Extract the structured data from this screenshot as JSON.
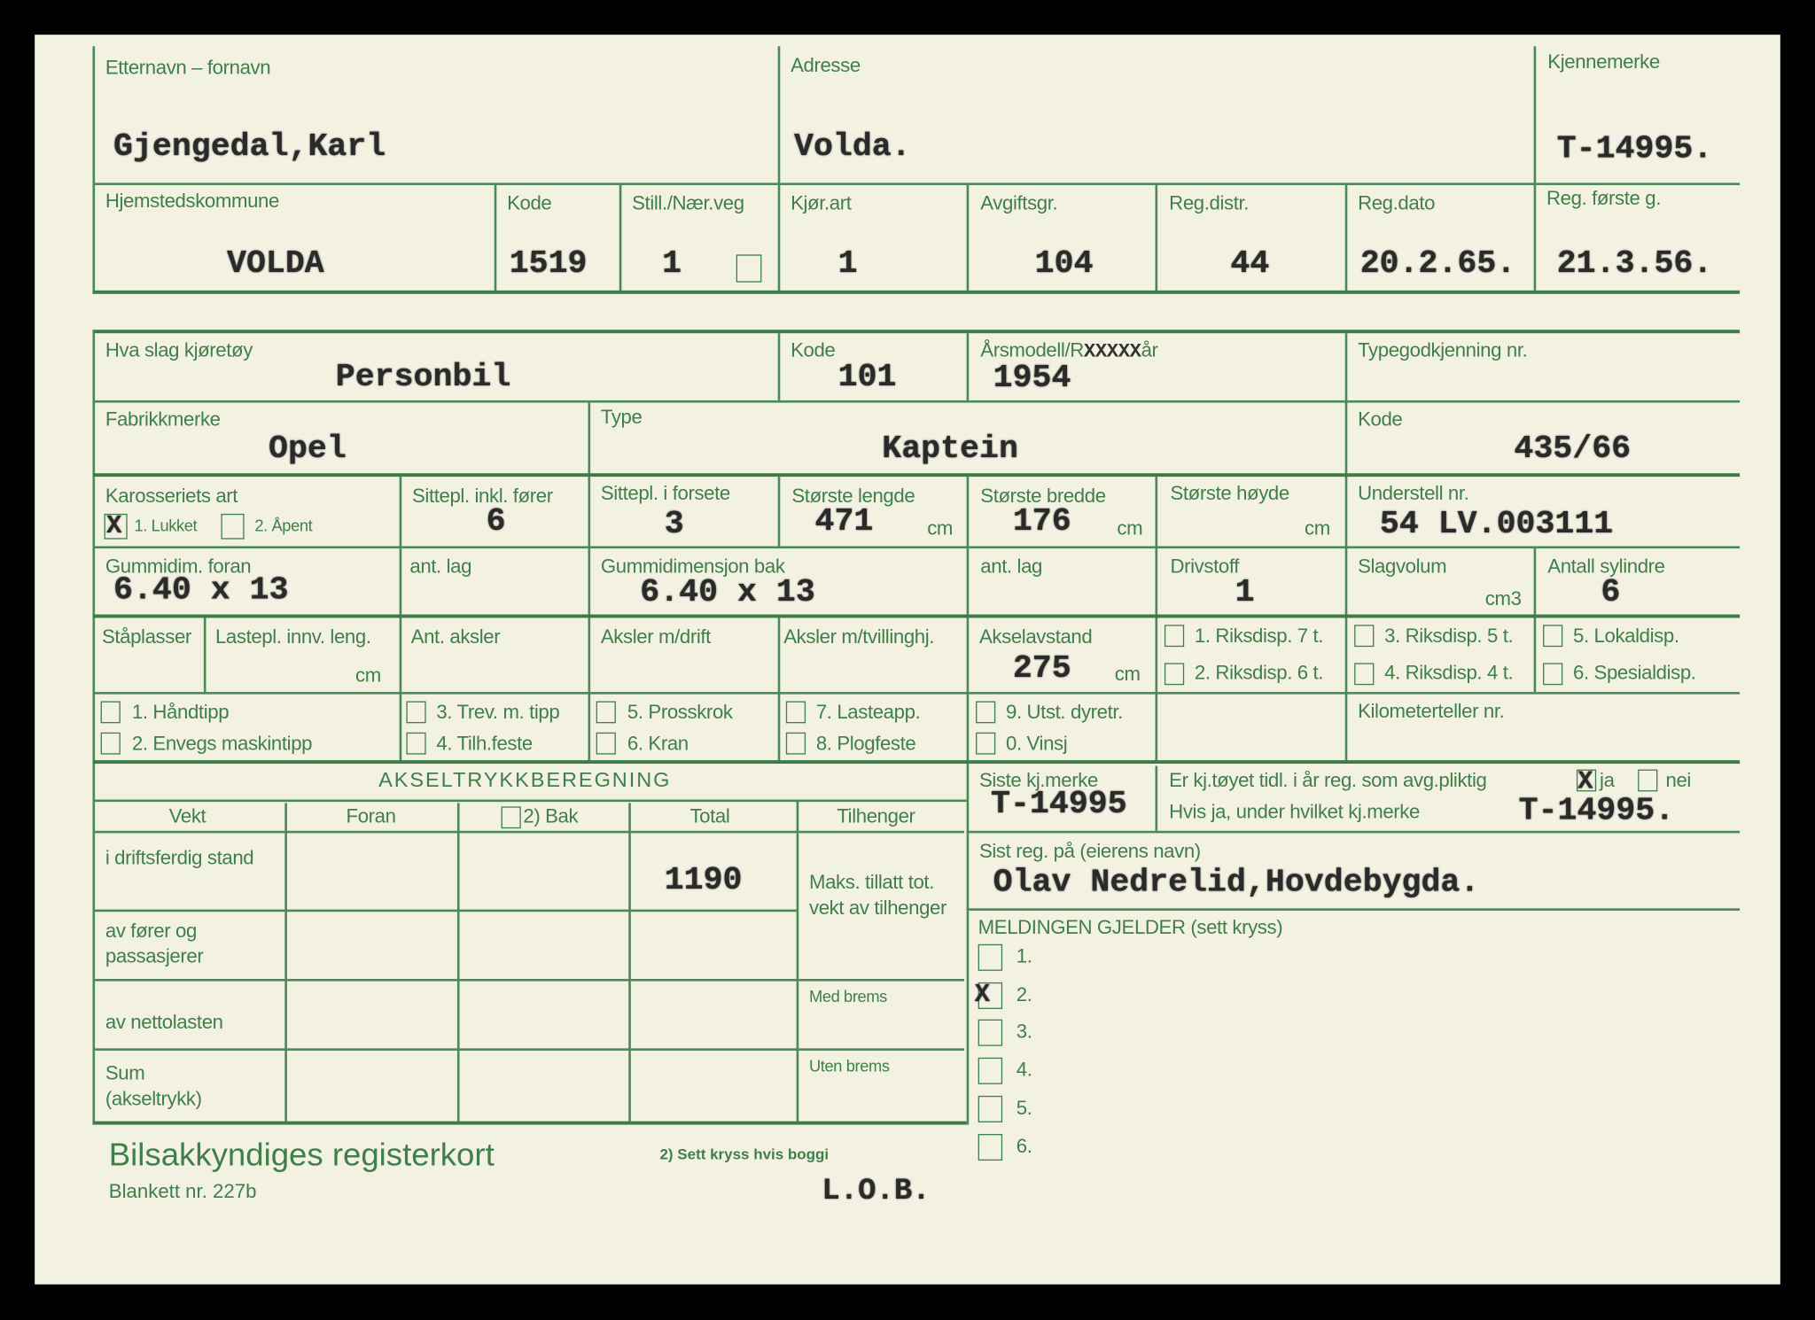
{
  "owner": {
    "name_label": "Etternavn – fornavn",
    "name": "Gjengedal,Karl",
    "address_label": "Adresse",
    "address": "Volda.",
    "plate_label": "Kjennemerke",
    "plate": "T-14995."
  },
  "registration": {
    "municipality_label": "Hjemstedskommune",
    "municipality": "VOLDA",
    "code_label": "Kode",
    "code": "1519",
    "still_label": "Still./Nær.veg",
    "still": "1",
    "kjorart_label": "Kjør.art",
    "kjorart": "1",
    "avgift_label": "Avgiftsgr.",
    "avgift": "104",
    "regdistr_label": "Reg.distr.",
    "regdistr": "44",
    "regdato_label": "Reg.dato",
    "regdato": "20.2.65.",
    "regforste_label": "Reg. første g.",
    "regforste": "21.3.56."
  },
  "vehicle": {
    "kind_label": "Hva slag kjøretøy",
    "kind": "Personbil",
    "kind_code_label": "Kode",
    "kind_code": "101",
    "year_label_prefix": "Årsmodell/R",
    "year_label_overstrike": "XXXXX",
    "year_label_suffix": "år",
    "year": "1954",
    "typegodkjenning_label": "Typegodkjenning nr.",
    "make_label": "Fabrikkmerke",
    "make": "Opel",
    "type_label": "Type",
    "type": "Kaptein",
    "type_code_label": "Kode",
    "type_code": "435/66",
    "body_label": "Karosseriets art",
    "body_opt1": "1. Lukket",
    "body_opt1_checked": true,
    "body_opt2": "2. Åpent",
    "seats_label": "Sittepl. inkl. fører",
    "seats": "6",
    "front_seats_label": "Sittepl. i forsete",
    "front_seats": "3",
    "length_label": "Største lengde",
    "length": "471",
    "width_label": "Største bredde",
    "width": "176",
    "height_label": "Største høyde",
    "unit_cm": "cm",
    "chassis_label": "Understell nr.",
    "chassis": "54 LV.003111",
    "tire_front_label": "Gummidim. foran",
    "tire_front": "6.40 x 13",
    "layers_label": "ant. lag",
    "tire_rear_label": "Gummidimensjon bak",
    "tire_rear": "6.40 x 13",
    "fuel_label": "Drivstoff",
    "fuel": "1",
    "displacement_label": "Slagvolum",
    "unit_cm3": "cm3",
    "cylinders_label": "Antall sylindre",
    "cylinders": "6",
    "standing_label": "Ståplasser",
    "cargo_length_label": "Lastepl. innv. leng.",
    "axles_label": "Ant. aksler",
    "drive_axles_label": "Aksler m/drift",
    "twin_axles_label": "Aksler m/tvillinghj.",
    "wheelbase_label": "Akselavstand",
    "wheelbase": "275",
    "disp": [
      "1. Riksdisp. 7 t.",
      "2. Riksdisp. 6 t.",
      "3. Riksdisp. 5 t.",
      "4. Riksdisp. 4 t.",
      "5. Lokaldisp.",
      "6. Spesialdisp."
    ],
    "equipment": [
      "1. Håndtipp",
      "2. Envegs maskintipp",
      "3. Trev. m. tipp",
      "4. Tilh.feste",
      "5. Prosskrok",
      "6. Kran",
      "7. Lasteapp.",
      "8. Plogfeste",
      "9. Utst. dyretr.",
      "0. Vinsj"
    ],
    "odometer_label": "Kilometerteller nr."
  },
  "axle_table": {
    "title": "AKSELTRYKKBEREGNING",
    "headers": [
      "Vekt",
      "Foran",
      "2) Bak",
      "Total",
      "Tilhenger"
    ],
    "rows": [
      "i driftsferdig stand",
      "av fører og passasjerer",
      "av nettolasten",
      "Sum (akseltrykk)"
    ],
    "total_driftsferdig": "1190",
    "trailer_max": "Maks. tillatt tot. vekt av tilhenger",
    "with_brakes": "Med brems",
    "without_brakes": "Uten brems"
  },
  "history": {
    "last_plate_label": "Siste kj.merke",
    "last_plate": "T-14995",
    "prev_reg_question": "Er kj.tøyet tidl. i år reg. som avg.pliktig",
    "yes_label": "ja",
    "yes_checked": true,
    "no_label": "nei",
    "which_plate_label": "Hvis ja, under hvilket kj.merke",
    "which_plate": "T-14995.",
    "last_owner_label": "Sist reg. på (eierens navn)",
    "last_owner": "Olav Nedrelid,Hovdebygda."
  },
  "message": {
    "label": "MELDINGEN GJELDER (sett kryss)",
    "options": [
      "1.",
      "2.",
      "3.",
      "4.",
      "5.",
      "6."
    ],
    "checked_index": 1
  },
  "footer": {
    "title": "Bilsakkyndiges registerkort",
    "form_number": "Blankett nr. 227b",
    "note": "2) Sett kryss hvis boggi",
    "initials": "L.O.B."
  },
  "colors": {
    "ink_green": "#3f7f4a",
    "paper": "#f3f1e2",
    "typewriter": "#2a2a2a"
  }
}
